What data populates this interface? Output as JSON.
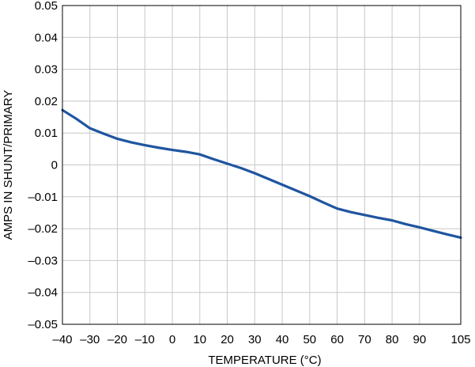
{
  "chart_data": {
    "type": "line",
    "title": "",
    "xlabel": "TEMPERATURE (°C)",
    "ylabel": "AMPS IN SHUNT/PRIMARY",
    "xlim": [
      -40,
      105
    ],
    "ylim": [
      -0.05,
      0.05
    ],
    "x_ticks": [
      -40,
      -30,
      -20,
      -10,
      0,
      10,
      20,
      30,
      40,
      50,
      60,
      70,
      80,
      90,
      105
    ],
    "x_tick_labels": [
      "–40",
      "–30",
      "–20",
      "–10",
      "0",
      "10",
      "20",
      "30",
      "40",
      "50",
      "60",
      "70",
      "80",
      "90",
      "105"
    ],
    "y_ticks": [
      0.05,
      0.04,
      0.03,
      0.02,
      0.01,
      0,
      -0.01,
      -0.02,
      -0.03,
      -0.04,
      -0.05
    ],
    "y_tick_labels": [
      "0.05",
      "0.04",
      "0.03",
      "0.02",
      "0.01",
      "0",
      "–0.01",
      "–0.02",
      "–0.03",
      "–0.04",
      "–0.05"
    ],
    "grid": true,
    "series": [
      {
        "x": [
          -40,
          -35,
          -30,
          -25,
          -20,
          -15,
          -10,
          -5,
          0,
          5,
          10,
          15,
          20,
          25,
          30,
          35,
          40,
          45,
          50,
          55,
          60,
          65,
          70,
          75,
          80,
          85,
          90,
          95,
          100,
          105
        ],
        "values": [
          0.0172,
          0.0145,
          0.0115,
          0.0098,
          0.0082,
          0.0071,
          0.0062,
          0.0054,
          0.0047,
          0.0041,
          0.0033,
          0.0018,
          0.0004,
          -0.001,
          -0.0026,
          -0.0044,
          -0.0062,
          -0.008,
          -0.0098,
          -0.0118,
          -0.0137,
          -0.0148,
          -0.0157,
          -0.0166,
          -0.0174,
          -0.0186,
          -0.0196,
          -0.0207,
          -0.0218,
          -0.0228
        ],
        "color": "#1f55a0"
      }
    ]
  }
}
